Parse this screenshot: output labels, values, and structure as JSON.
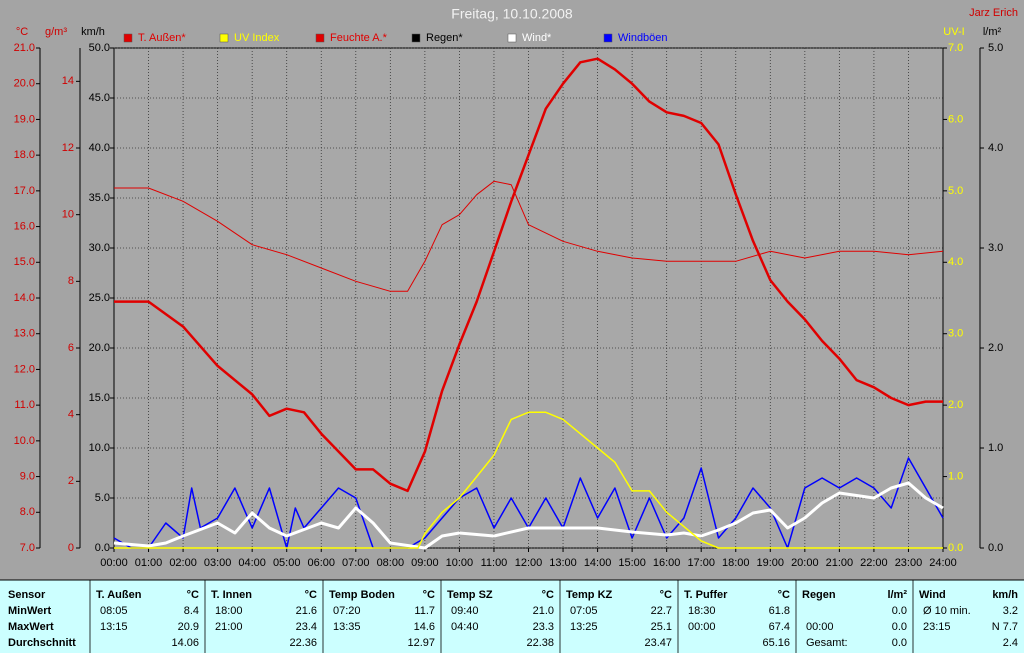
{
  "chart_data": {
    "type": "line",
    "title": "Freitag, 10.10.2008",
    "author": "Jarz Erich",
    "xlim": [
      0,
      24
    ],
    "xticks": [
      {
        "value": 0,
        "label": "00:00"
      },
      {
        "value": 1,
        "label": "01:00"
      },
      {
        "value": 2,
        "label": "02:00"
      },
      {
        "value": 3,
        "label": "03:00"
      },
      {
        "value": 4,
        "label": "04:00"
      },
      {
        "value": 5,
        "label": "05:00"
      },
      {
        "value": 6,
        "label": "06:00"
      },
      {
        "value": 7,
        "label": "07:00"
      },
      {
        "value": 8,
        "label": "08:00"
      },
      {
        "value": 9,
        "label": "09:00"
      },
      {
        "value": 10,
        "label": "10:00"
      },
      {
        "value": 11,
        "label": "11:00"
      },
      {
        "value": 12,
        "label": "12:00"
      },
      {
        "value": 13,
        "label": "13:00"
      },
      {
        "value": 14,
        "label": "14:00"
      },
      {
        "value": 15,
        "label": "15:00"
      },
      {
        "value": 16,
        "label": "16:00"
      },
      {
        "value": 17,
        "label": "17:00"
      },
      {
        "value": 18,
        "label": "18:00"
      },
      {
        "value": 19,
        "label": "19:00"
      },
      {
        "value": 20,
        "label": "20:00"
      },
      {
        "value": 21,
        "label": "21:00"
      },
      {
        "value": 22,
        "label": "22:00"
      },
      {
        "value": 23,
        "label": "23:00"
      },
      {
        "value": 24,
        "label": "24:00"
      }
    ],
    "grid": true,
    "y_axes": [
      {
        "title": "°C",
        "color": "#d00000",
        "side": "left",
        "lim": [
          7,
          21
        ],
        "ticks": [
          {
            "value": 7,
            "label": "7.0"
          },
          {
            "value": 8,
            "label": "8.0"
          },
          {
            "value": 9,
            "label": "9.0"
          },
          {
            "value": 10,
            "label": "10.0"
          },
          {
            "value": 11,
            "label": "11.0"
          },
          {
            "value": 12,
            "label": "12.0"
          },
          {
            "value": 13,
            "label": "13.0"
          },
          {
            "value": 14,
            "label": "14.0"
          },
          {
            "value": 15,
            "label": "15.0"
          },
          {
            "value": 16,
            "label": "16.0"
          },
          {
            "value": 17,
            "label": "17.0"
          },
          {
            "value": 18,
            "label": "18.0"
          },
          {
            "value": 19,
            "label": "19.0"
          },
          {
            "value": 20,
            "label": "20.0"
          },
          {
            "value": 21,
            "label": "21.0"
          }
        ]
      },
      {
        "title": "g/m³",
        "color": "#d00000",
        "side": "left",
        "lim": [
          0,
          15
        ],
        "ticks": [
          0,
          2,
          4,
          6,
          8,
          10,
          12,
          14
        ]
      },
      {
        "title": "km/h",
        "color": "#000000",
        "side": "left",
        "lim": [
          0,
          50
        ],
        "grid": true,
        "ticks": [
          {
            "value": 0,
            "label": "0.0"
          },
          {
            "value": 5,
            "label": "5.0"
          },
          {
            "value": 10,
            "label": "10.0"
          },
          {
            "value": 15,
            "label": "15.0"
          },
          {
            "value": 20,
            "label": "20.0"
          },
          {
            "value": 25,
            "label": "25.0"
          },
          {
            "value": 30,
            "label": "30.0"
          },
          {
            "value": 35,
            "label": "35.0"
          },
          {
            "value": 40,
            "label": "40.0"
          },
          {
            "value": 45,
            "label": "45.0"
          },
          {
            "value": 50,
            "label": "50.0"
          }
        ]
      },
      {
        "title": "UV-I",
        "color": "#ffff00",
        "side": "right",
        "lim": [
          0,
          7
        ],
        "ticks": [
          {
            "value": 0,
            "label": "0.0"
          },
          {
            "value": 1,
            "label": "1.0"
          },
          {
            "value": 2,
            "label": "2.0"
          },
          {
            "value": 3,
            "label": "3.0"
          },
          {
            "value": 4,
            "label": "4.0"
          },
          {
            "value": 5,
            "label": "5.0"
          },
          {
            "value": 6,
            "label": "6.0"
          },
          {
            "value": 7,
            "label": "7.0"
          }
        ]
      },
      {
        "title": "l/m²",
        "color": "#000000",
        "side": "right",
        "lim": [
          0,
          5
        ],
        "ticks": [
          {
            "value": 0,
            "label": "0.0"
          },
          {
            "value": 1,
            "label": "1.0"
          },
          {
            "value": 2,
            "label": "2.0"
          },
          {
            "value": 3,
            "label": "3.0"
          },
          {
            "value": 4,
            "label": "4.0"
          },
          {
            "value": 5,
            "label": "5.0"
          }
        ]
      }
    ],
    "series": [
      {
        "name": "T. Außen*",
        "color": "#e00000",
        "line_width": 2.5,
        "axis": 0,
        "x": [
          0,
          1,
          2,
          3,
          4,
          4.5,
          5,
          5.5,
          6,
          7,
          7.5,
          8,
          8.5,
          9,
          9.5,
          10,
          10.5,
          11,
          11.5,
          12,
          12.5,
          13,
          13.5,
          14,
          14.5,
          15,
          15.5,
          16,
          16.5,
          17,
          17.5,
          18,
          18.5,
          19,
          19.5,
          20,
          20.5,
          21,
          21.5,
          22,
          22.5,
          23,
          23.5,
          24
        ],
        "values": [
          13.9,
          13.9,
          13.2,
          12.1,
          11.3,
          10.7,
          10.9,
          10.8,
          10.2,
          9.2,
          9.2,
          8.8,
          8.6,
          9.7,
          11.4,
          12.7,
          13.9,
          15.3,
          16.7,
          18.0,
          19.3,
          20.0,
          20.6,
          20.7,
          20.4,
          20.0,
          19.5,
          19.2,
          19.1,
          18.9,
          18.3,
          16.9,
          15.6,
          14.5,
          13.9,
          13.4,
          12.8,
          12.3,
          11.7,
          11.5,
          11.2,
          11.0,
          11.1,
          11.1
        ]
      },
      {
        "name": "UV Index",
        "color": "#ffff00",
        "line_width": 1.5,
        "axis": 3,
        "x": [
          0,
          8.8,
          9,
          9.5,
          10,
          10.5,
          11,
          11.5,
          12,
          12.5,
          13,
          13.5,
          14,
          14.5,
          15,
          15.5,
          16,
          16.5,
          17,
          17.5,
          24
        ],
        "values": [
          0,
          0,
          0.2,
          0.5,
          0.7,
          1.0,
          1.3,
          1.8,
          1.9,
          1.9,
          1.8,
          1.6,
          1.4,
          1.2,
          0.8,
          0.8,
          0.5,
          0.3,
          0.1,
          0,
          0
        ]
      },
      {
        "name": "Feuchte A.*",
        "color": "#e00000",
        "line_width": 1,
        "axis": 1,
        "x": [
          0,
          1,
          2,
          3,
          4,
          5,
          6,
          7,
          8,
          8.5,
          9,
          9.5,
          10,
          10.5,
          11,
          11.5,
          12,
          13,
          14,
          15,
          16,
          17,
          18,
          19,
          20,
          21,
          22,
          23,
          24
        ],
        "values": [
          10.8,
          10.8,
          10.4,
          9.8,
          9.1,
          8.8,
          8.4,
          8.0,
          7.7,
          7.7,
          8.6,
          9.7,
          10.0,
          10.6,
          11.0,
          10.9,
          9.7,
          9.2,
          8.9,
          8.7,
          8.6,
          8.6,
          8.6,
          8.9,
          8.7,
          8.9,
          8.9,
          8.8,
          8.9
        ]
      },
      {
        "name": "Regen*",
        "color": "#000000",
        "line_width": 1.5,
        "axis": 4,
        "x": [],
        "values": []
      },
      {
        "name": "Wind*",
        "color": "#ffffff",
        "line_width": 3,
        "axis": 2,
        "x": [
          0,
          1,
          1.5,
          2,
          3,
          3.5,
          4,
          4.5,
          5,
          6,
          6.5,
          7,
          7.5,
          8,
          9,
          9.5,
          10,
          11,
          12,
          13,
          14,
          15,
          16,
          16.5,
          17,
          17.5,
          18,
          18.5,
          19,
          19.5,
          20,
          20.5,
          21,
          22,
          22.5,
          23,
          23.5,
          24
        ],
        "values": [
          0.5,
          0.2,
          0.5,
          1.2,
          2.5,
          1.5,
          3.5,
          2.0,
          1.2,
          2.5,
          2.0,
          4.0,
          2.5,
          0.5,
          0,
          1.2,
          1.5,
          1.2,
          2.0,
          2.0,
          2.0,
          1.6,
          1.3,
          1.5,
          1.2,
          1.8,
          2.5,
          3.5,
          3.8,
          2.0,
          3.0,
          4.5,
          5.5,
          5.0,
          6.0,
          6.5,
          5.0,
          4.0
        ]
      },
      {
        "name": "Windböen",
        "color": "#0000ff",
        "line_width": 1.5,
        "axis": 2,
        "x": [
          0,
          0.5,
          1,
          1.5,
          2,
          2.25,
          2.5,
          3,
          3.5,
          4,
          4.5,
          5,
          5.25,
          5.5,
          6,
          6.5,
          7,
          7.5,
          8,
          8.5,
          9,
          9.5,
          10,
          10.5,
          11,
          11.5,
          12,
          12.5,
          13,
          13.5,
          14,
          14.5,
          15,
          15.5,
          16,
          16.5,
          17,
          17.5,
          18,
          18.5,
          19,
          19.5,
          20,
          20.5,
          21,
          21.5,
          22,
          22.5,
          23,
          23.5,
          24
        ],
        "values": [
          1,
          0,
          0,
          2.5,
          1,
          6,
          2,
          3,
          6,
          2,
          6,
          0,
          4,
          2,
          4,
          6,
          5,
          0,
          0,
          0,
          1,
          3,
          5,
          6,
          2,
          5,
          2,
          5,
          2,
          7,
          3,
          6,
          1,
          5,
          1,
          3,
          8,
          1,
          3,
          6,
          4,
          0,
          6,
          7,
          6,
          7,
          6,
          4,
          9,
          6,
          3
        ]
      }
    ]
  },
  "table": {
    "row_title": "Sensor",
    "row_labels": [
      "MinWert",
      "MaxWert",
      "Durchschnitt"
    ],
    "columns": [
      {
        "title": "T. Außen",
        "unit": "°C",
        "cells": [
          {
            "time": "08:05",
            "value": "8.4"
          },
          {
            "time": "13:15",
            "value": "20.9"
          },
          {
            "value": "14.06"
          }
        ]
      },
      {
        "title": "T. Innen",
        "unit": "°C",
        "cells": [
          {
            "time": "18:00",
            "value": "21.6"
          },
          {
            "time": "21:00",
            "value": "23.4"
          },
          {
            "value": "22.36"
          }
        ]
      },
      {
        "title": "Temp Boden",
        "unit": "°C",
        "cells": [
          {
            "time": "07:20",
            "value": "11.7"
          },
          {
            "time": "13:35",
            "value": "14.6"
          },
          {
            "value": "12.97"
          }
        ]
      },
      {
        "title": "Temp SZ",
        "unit": "°C",
        "cells": [
          {
            "time": "09:40",
            "value": "21.0"
          },
          {
            "time": "04:40",
            "value": "23.3"
          },
          {
            "value": "22.38"
          }
        ]
      },
      {
        "title": "Temp KZ",
        "unit": "°C",
        "cells": [
          {
            "time": "07:05",
            "value": "22.7"
          },
          {
            "time": "13:25",
            "value": "25.1"
          },
          {
            "value": "23.47"
          }
        ]
      },
      {
        "title": "T. Puffer",
        "unit": "°C",
        "cells": [
          {
            "time": "18:30",
            "value": "61.8"
          },
          {
            "time": "00:00",
            "value": "67.4"
          },
          {
            "value": "65.16"
          }
        ]
      },
      {
        "title": "Regen",
        "unit": "l/m²",
        "cells": [
          {
            "value": "0.0"
          },
          {
            "time": "00:00",
            "value": "0.0"
          },
          {
            "time": "Gesamt:",
            "value": "0.0"
          }
        ]
      },
      {
        "title": "Wind",
        "unit": "km/h",
        "cells": [
          {
            "time": "Ø 10 min.",
            "value": "3.2"
          },
          {
            "time": "23:15",
            "value": "N 7.7"
          },
          {
            "value": "2.4"
          }
        ]
      }
    ]
  }
}
